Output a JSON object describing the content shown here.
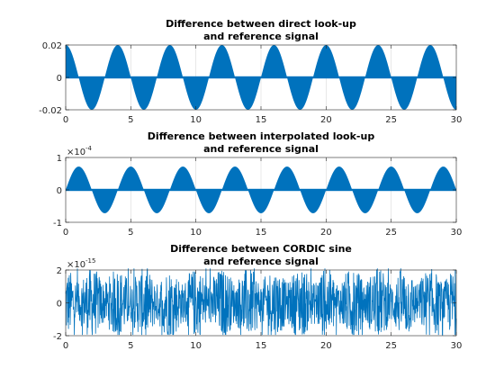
{
  "chart_data": [
    {
      "type": "area",
      "title_line1": "Difference between direct look-up",
      "title_line2": "and reference signal",
      "xlim": [
        0,
        30
      ],
      "ylim": [
        -0.02,
        0.02
      ],
      "xticks": [
        0,
        5,
        10,
        15,
        20,
        25,
        30
      ],
      "yticks": [
        -0.02,
        0,
        0.02
      ],
      "xtick_labels": [
        "0",
        "5",
        "10",
        "15",
        "20",
        "25",
        "30"
      ],
      "ytick_labels": [
        "-0.02",
        "0",
        "0.02"
      ],
      "exponent_label": "",
      "grid": "vertical",
      "series": [
        {
          "envelope": "sinusoid",
          "amplitude": 0.02,
          "period": 4,
          "phase_cycles": 0.25,
          "color": "#0072bd"
        }
      ]
    },
    {
      "type": "area",
      "title_line1": "Difference between interpolated look-up",
      "title_line2": "and reference signal",
      "xlim": [
        0,
        30
      ],
      "ylim": [
        -1,
        1
      ],
      "xticks": [
        0,
        5,
        10,
        15,
        20,
        25,
        30
      ],
      "yticks": [
        -1,
        0,
        1
      ],
      "xtick_labels": [
        "0",
        "5",
        "10",
        "15",
        "20",
        "25",
        "30"
      ],
      "ytick_labels": [
        "-1",
        "0",
        "1"
      ],
      "exponent_label": "×10",
      "exponent_power": "-4",
      "grid": "vertical",
      "series": [
        {
          "envelope": "sinusoid",
          "amplitude": 0.72,
          "period": 4,
          "phase_cycles": 0.0,
          "color": "#0072bd"
        }
      ]
    },
    {
      "type": "line",
      "title_line1": "Difference between CORDIC sine",
      "title_line2": "and reference signal",
      "xlim": [
        0,
        30
      ],
      "ylim": [
        -2,
        2
      ],
      "xticks": [
        0,
        5,
        10,
        15,
        20,
        25,
        30
      ],
      "yticks": [
        -2,
        0,
        2
      ],
      "xtick_labels": [
        "0",
        "5",
        "10",
        "15",
        "20",
        "25",
        "30"
      ],
      "ytick_labels": [
        "-2",
        "0",
        "2"
      ],
      "exponent_label": "×10",
      "exponent_power": "-15",
      "grid": "vertical",
      "series": [
        {
          "envelope": "noise",
          "amplitude": 2.1,
          "period": 2,
          "color": "#0072bd"
        }
      ]
    }
  ]
}
